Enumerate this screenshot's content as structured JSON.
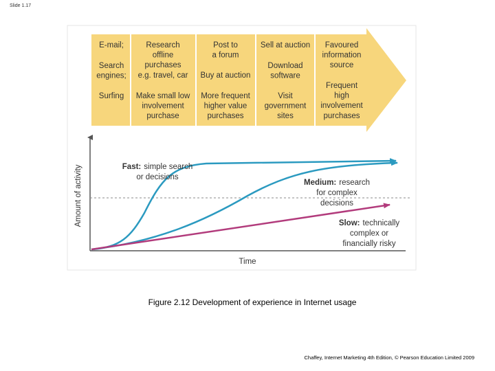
{
  "slide_label": "Slide 1.17",
  "figure": {
    "columns": [
      {
        "cells": [
          [
            "E-mail;"
          ],
          [
            "Search",
            "engines;"
          ],
          [
            "Surfing"
          ]
        ]
      },
      {
        "cells": [
          [
            "Research",
            "offline",
            "purchases",
            "e.g. travel, car"
          ],
          [
            "Make small low",
            "involvement",
            "purchase"
          ]
        ]
      },
      {
        "cells": [
          [
            "Post to",
            "a forum"
          ],
          [
            "Buy at auction"
          ],
          [
            "More frequent",
            "higher value",
            "purchases"
          ]
        ]
      },
      {
        "cells": [
          [
            "Sell at auction"
          ],
          [
            "Download",
            "software"
          ],
          [
            "Visit",
            "government",
            "sites"
          ]
        ]
      },
      {
        "cells": [
          [
            "Favoured",
            "information",
            "source"
          ],
          [
            "Frequent",
            "high",
            "involvement",
            "purchases"
          ]
        ]
      }
    ],
    "y_axis_label": "Amount of activity",
    "x_axis_label": "Time",
    "curves": [
      {
        "term": "Fast:",
        "lines": [
          "simple search",
          "or decisions"
        ]
      },
      {
        "term": "Medium:",
        "lines": [
          "research",
          "for complex",
          "decisions"
        ]
      },
      {
        "term": "Slow:",
        "lines": [
          "technically",
          "complex or",
          "financially risky"
        ]
      }
    ]
  },
  "caption": "Figure 2.12  Development of experience in Internet usage",
  "footer": "Chaffey, Internet Marketing 4th Edition, © Pearson Education Limited 2009"
}
